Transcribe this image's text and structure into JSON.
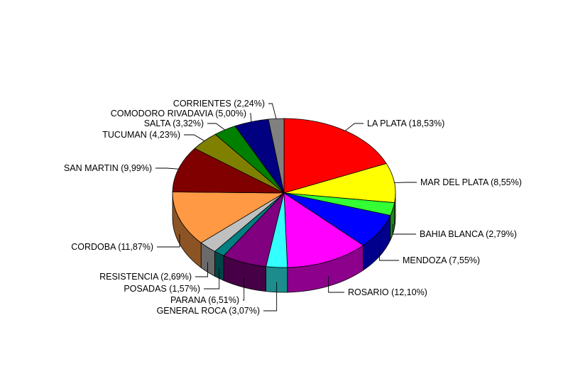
{
  "chart_data": {
    "type": "pie",
    "title": "",
    "style": "3d",
    "start_position": "top, clockwise",
    "slices": [
      {
        "label": "LA PLATA (18,53%)",
        "value": 18.53,
        "color": "#FF0000"
      },
      {
        "label": "MAR DEL PLATA (8,55%)",
        "value": 8.55,
        "color": "#FFFF00"
      },
      {
        "label": "BAHIA BLANCA (2,79%)",
        "value": 2.79,
        "color": "#33FF33"
      },
      {
        "label": "MENDOZA (7,55%)",
        "value": 7.55,
        "color": "#0000FF"
      },
      {
        "label": "ROSARIO (12,10%)",
        "value": 12.1,
        "color": "#FF00FF"
      },
      {
        "label": "GENERAL ROCA (3,07%)",
        "value": 3.07,
        "color": "#33FFFF"
      },
      {
        "label": "PARANA (6,51%)",
        "value": 6.51,
        "color": "#800080"
      },
      {
        "label": "POSADAS (1,57%)",
        "value": 1.57,
        "color": "#008080"
      },
      {
        "label": "RESISTENCIA (2,69%)",
        "value": 2.69,
        "color": "#C0C0C0"
      },
      {
        "label": "CORDOBA (11,87%)",
        "value": 11.87,
        "color": "#FF9944"
      },
      {
        "label": "SAN MARTIN  (9,99%)",
        "value": 9.99,
        "color": "#800000"
      },
      {
        "label": "TUCUMAN (4,23%)",
        "value": 4.23,
        "color": "#808000"
      },
      {
        "label": "SALTA (3,32%)",
        "value": 3.32,
        "color": "#008000"
      },
      {
        "label": "COMODORO RIVADAVIA (5,00%)",
        "value": 5.0,
        "color": "#000080"
      },
      {
        "label": "CORRIENTES (2,24%)",
        "value": 2.24,
        "color": "#808080"
      }
    ]
  }
}
